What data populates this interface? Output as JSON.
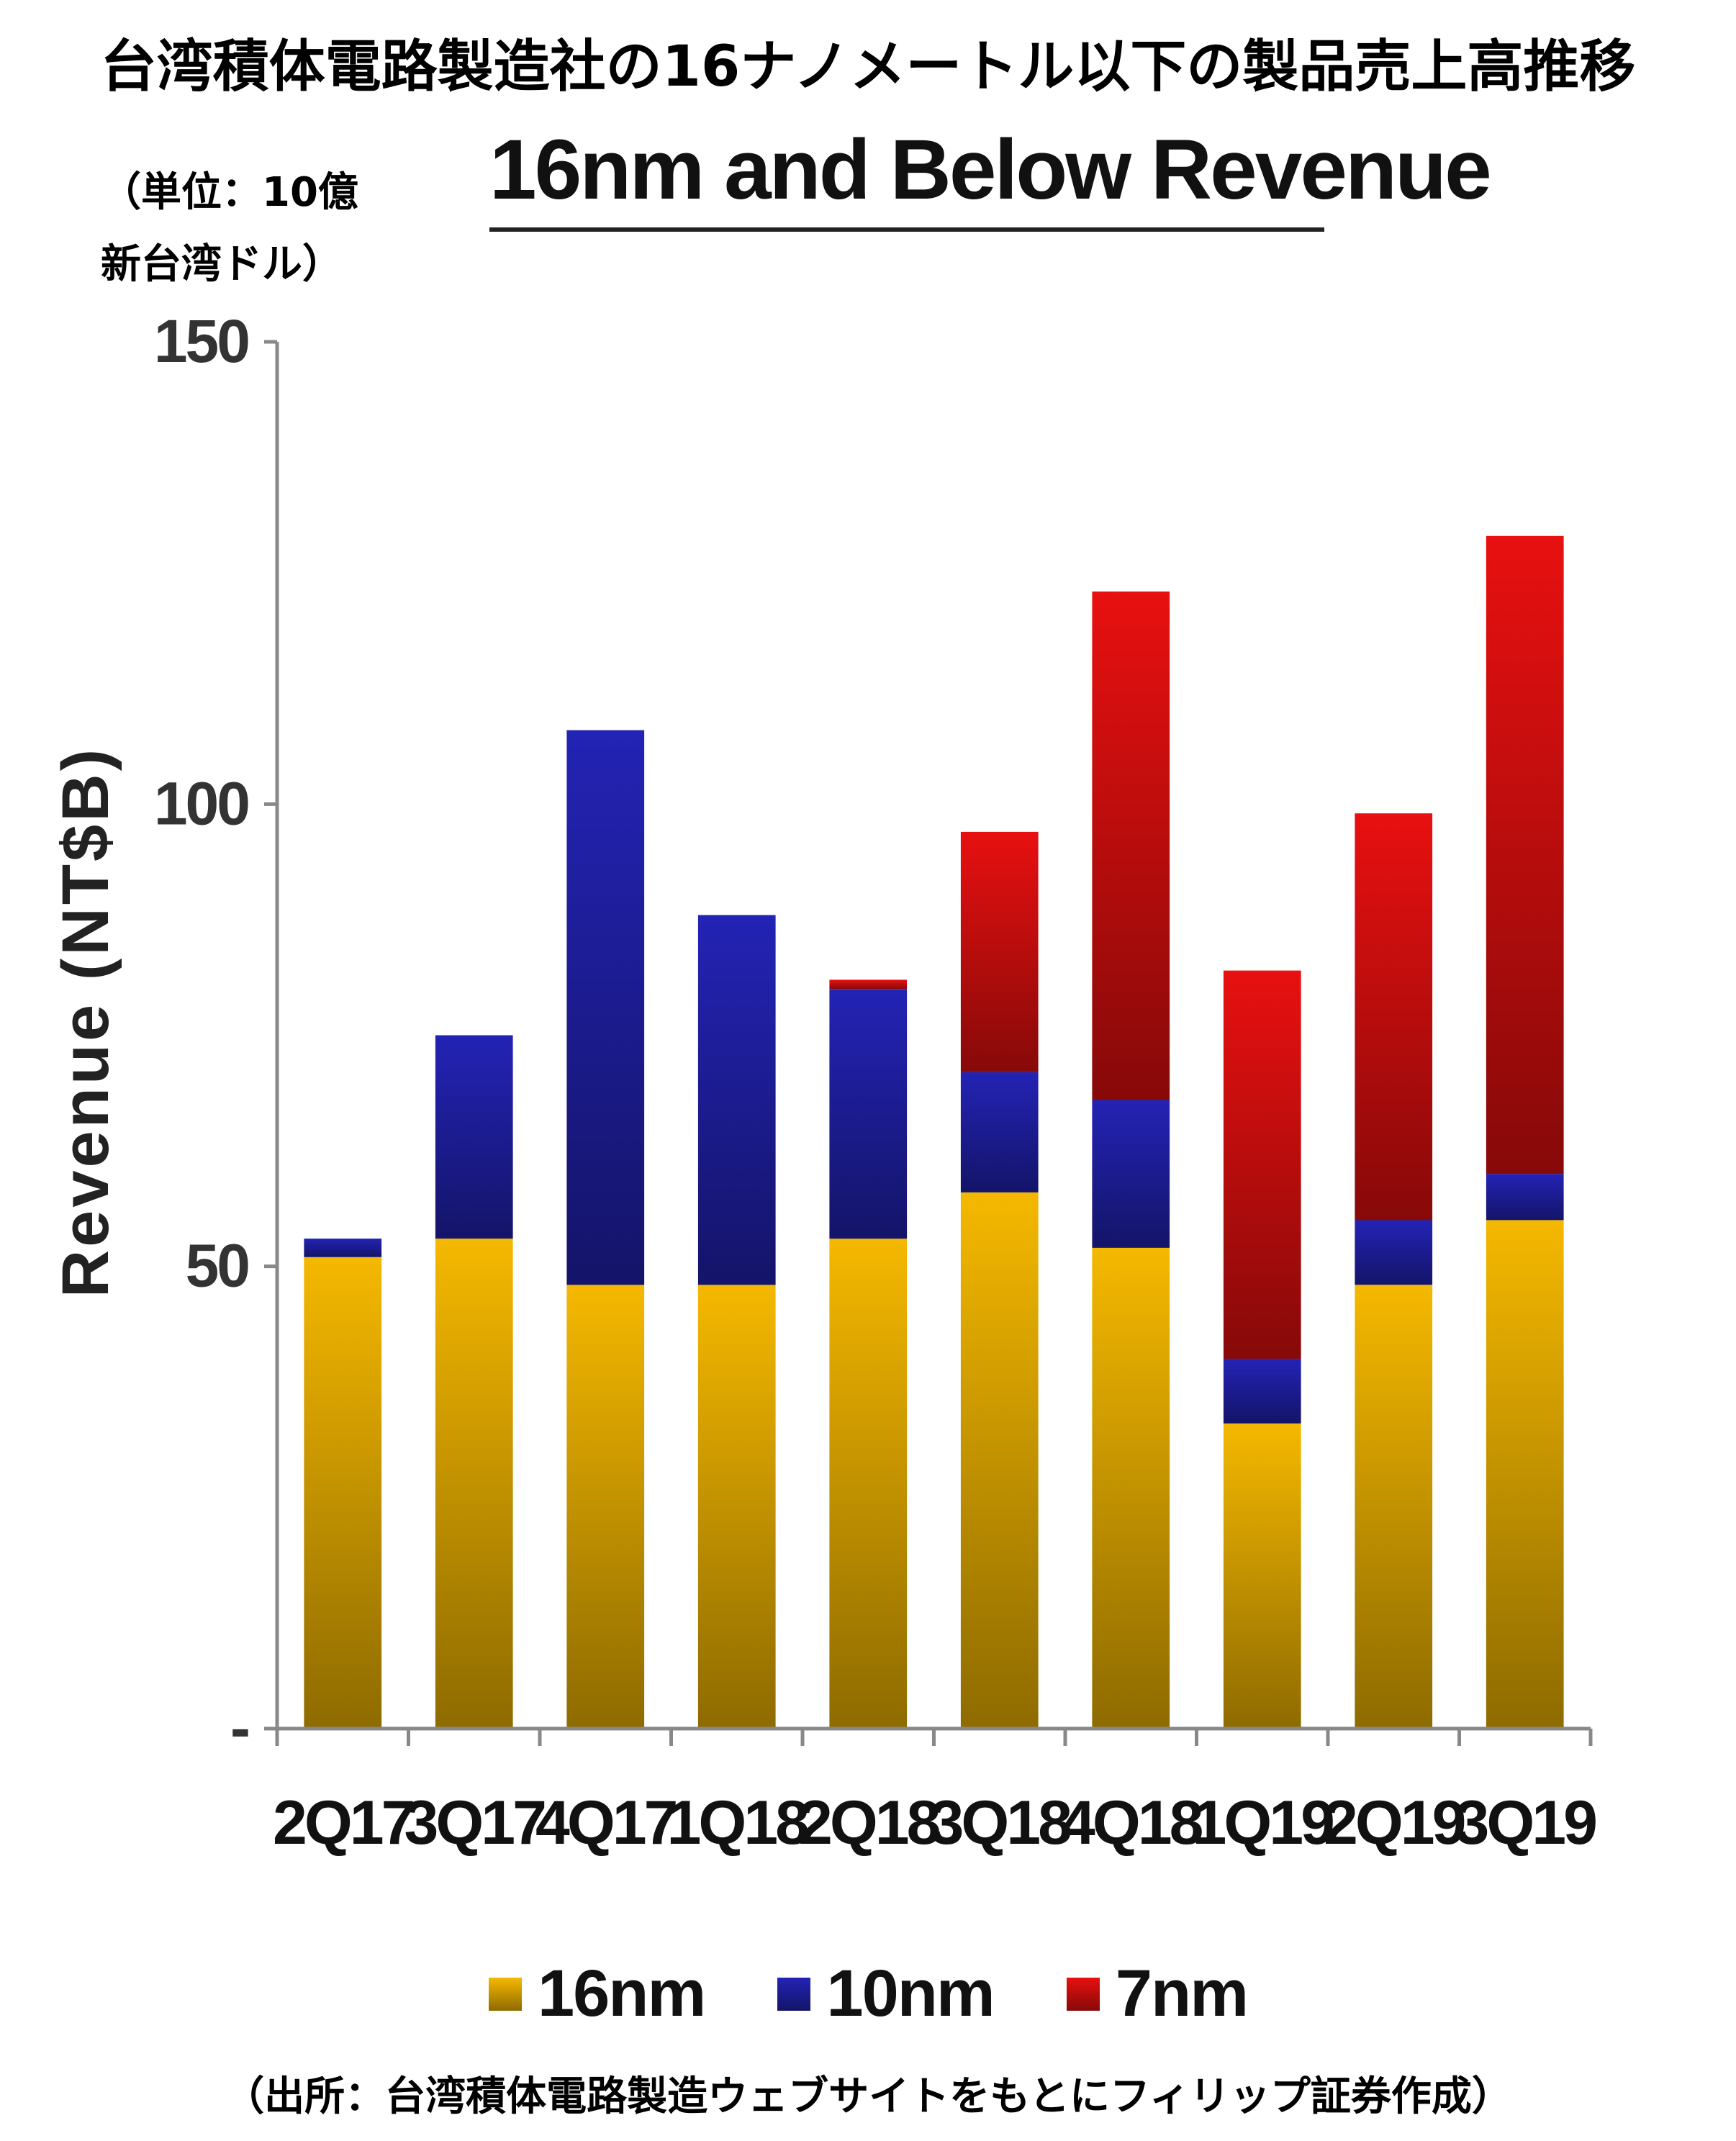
{
  "page_title": "台湾積体電路製造社の16ナノメートル以下の製品売上高推移",
  "unit_label": {
    "line1": "（単位：10億",
    "line2": "新台湾ドル）"
  },
  "source_note": "（出所：台湾積体電路製造ウェブサイトをもとにフィリップ証券作成）",
  "colors": {
    "16nm": "#F5B800",
    "10nm": "#2323B5",
    "7nm": "#E81010"
  },
  "chart_data": {
    "type": "bar",
    "stacked": true,
    "title": "16nm and Below Revenue",
    "xlabel": "",
    "ylabel": "Revenue (NT$B)",
    "ylim": [
      0,
      150
    ],
    "yticks": [
      {
        "value": 0,
        "label": "-"
      },
      {
        "value": 50,
        "label": "50"
      },
      {
        "value": 100,
        "label": "100"
      },
      {
        "value": 150,
        "label": "150"
      }
    ],
    "grid": false,
    "legend_position": "bottom",
    "categories": [
      "2Q17",
      "3Q17",
      "4Q17",
      "1Q18",
      "2Q18",
      "3Q18",
      "4Q18",
      "1Q19",
      "2Q19",
      "3Q19"
    ],
    "series": [
      {
        "name": "16nm",
        "values": [
          51,
          53,
          48,
          48,
          53,
          58,
          52,
          33,
          48,
          55
        ]
      },
      {
        "name": "10nm",
        "values": [
          2,
          22,
          60,
          40,
          27,
          13,
          16,
          7,
          7,
          5
        ]
      },
      {
        "name": "7nm",
        "values": [
          0,
          0,
          0,
          0,
          1,
          26,
          55,
          42,
          44,
          69
        ]
      }
    ]
  }
}
